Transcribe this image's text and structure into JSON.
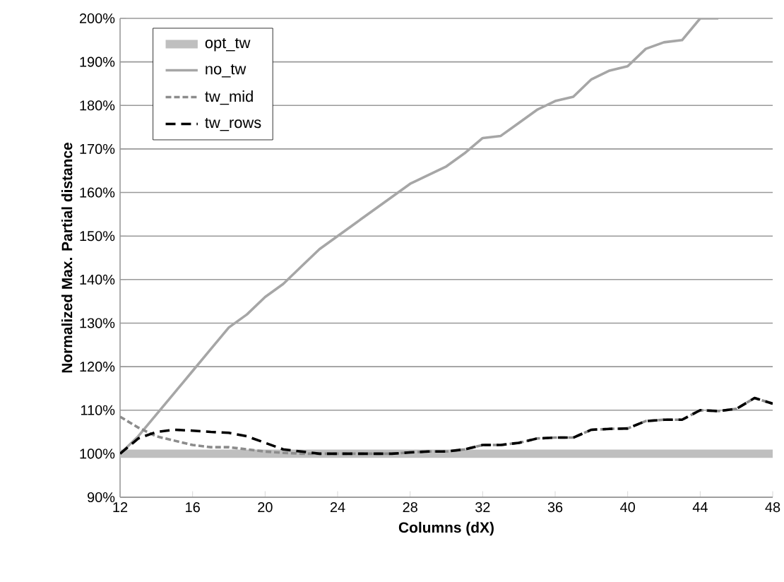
{
  "chart_data": {
    "type": "line",
    "xlabel": "Columns (dX)",
    "ylabel": "Normalized Max. Partial distance",
    "x": [
      12,
      13,
      14,
      15,
      16,
      17,
      18,
      19,
      20,
      21,
      22,
      23,
      24,
      25,
      26,
      27,
      28,
      29,
      30,
      31,
      32,
      33,
      34,
      35,
      36,
      37,
      38,
      39,
      40,
      41,
      42,
      43,
      44,
      45,
      46,
      47,
      48
    ],
    "series": [
      {
        "name": "opt_tw",
        "color": "#bfbfbf",
        "line_style": "solid",
        "values": [
          100,
          100,
          100,
          100,
          100,
          100,
          100,
          100,
          100,
          100,
          100,
          100,
          100,
          100,
          100,
          100,
          100,
          100,
          100,
          100,
          100,
          100,
          100,
          100,
          100,
          100,
          100,
          100,
          100,
          100,
          100,
          100,
          100,
          100,
          100,
          100,
          100
        ]
      },
      {
        "name": "no_tw",
        "color": "#a6a6a6",
        "line_style": "solid",
        "values": [
          100,
          104,
          109,
          114,
          119,
          124,
          129,
          132,
          136,
          139,
          143,
          147,
          150,
          153,
          156,
          159,
          162,
          164,
          166,
          169,
          172.5,
          173,
          176,
          179,
          181,
          182,
          186,
          188,
          189,
          193,
          194.5,
          195,
          200,
          200,
          null,
          null,
          null
        ]
      },
      {
        "name": "tw_mid",
        "color": "#8c8c8c",
        "line_style": "dashed",
        "values": [
          108.5,
          106,
          104,
          103,
          102,
          101.5,
          101.5,
          101,
          100.5,
          100.2,
          100,
          100,
          100,
          100,
          100,
          100,
          100.3,
          100.5,
          100.5,
          101,
          102,
          102,
          102.5,
          103.5,
          103.7,
          103.7,
          105.5,
          105.7,
          105.8,
          107.5,
          107.8,
          107.8,
          110,
          109.8,
          110.3,
          112.8,
          111.5
        ]
      },
      {
        "name": "tw_rows",
        "color": "#000000",
        "line_style": "dashed",
        "values": [
          100,
          103.5,
          105,
          105.5,
          105.3,
          105,
          104.8,
          104,
          102.5,
          101,
          100.5,
          100,
          100,
          100,
          100,
          100,
          100.3,
          100.5,
          100.5,
          101,
          102,
          102,
          102.5,
          103.5,
          103.7,
          103.7,
          105.5,
          105.7,
          105.8,
          107.5,
          107.8,
          107.8,
          110,
          109.8,
          110.3,
          112.8,
          111.5
        ]
      }
    ],
    "xlim": [
      12,
      48
    ],
    "xticks": [
      12,
      16,
      20,
      24,
      28,
      32,
      36,
      40,
      44,
      48
    ],
    "ylim": [
      90,
      200
    ],
    "yticks": [
      {
        "value": 90,
        "label": "90%"
      },
      {
        "value": 100,
        "label": "100%"
      },
      {
        "value": 110,
        "label": "110%"
      },
      {
        "value": 120,
        "label": "120%"
      },
      {
        "value": 130,
        "label": "130%"
      },
      {
        "value": 140,
        "label": "140%"
      },
      {
        "value": 150,
        "label": "150%"
      },
      {
        "value": 160,
        "label": "160%"
      },
      {
        "value": 170,
        "label": "170%"
      },
      {
        "value": 180,
        "label": "180%"
      },
      {
        "value": 190,
        "label": "190%"
      },
      {
        "value": 200,
        "label": "200%"
      }
    ],
    "grid": "y",
    "legend": "top left",
    "marker": "none"
  }
}
